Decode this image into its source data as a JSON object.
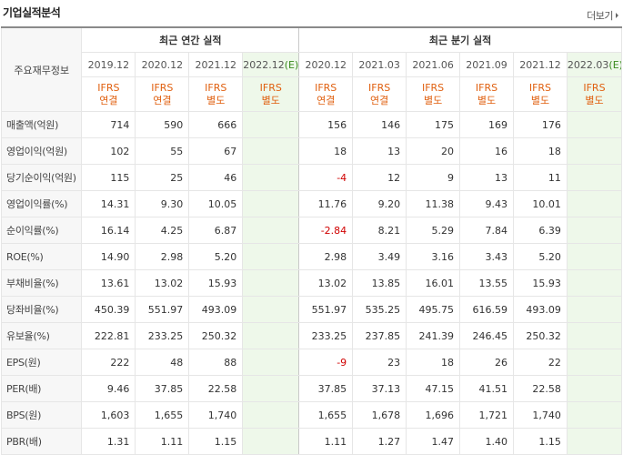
{
  "header": {
    "title": "기업실적분석",
    "more_label": "더보기"
  },
  "table": {
    "main_label": "주요재무정보",
    "annual_label": "최근 연간 실적",
    "quarter_label": "최근 분기 실적",
    "annual_periods": [
      "2019.12",
      "2020.12",
      "2021.12",
      "2022.12"
    ],
    "annual_est_mark": "(E)",
    "quarter_periods": [
      "2020.12",
      "2021.03",
      "2021.06",
      "2021.09",
      "2021.12",
      "2022.03"
    ],
    "quarter_est_mark": "(E)",
    "annual_std": [
      [
        "IFRS",
        "연결"
      ],
      [
        "IFRS",
        "연결"
      ],
      [
        "IFRS",
        "별도"
      ],
      [
        "IFRS",
        "별도"
      ]
    ],
    "quarter_std": [
      [
        "IFRS",
        "연결"
      ],
      [
        "IFRS",
        "연결"
      ],
      [
        "IFRS",
        "별도"
      ],
      [
        "IFRS",
        "별도"
      ],
      [
        "IFRS",
        "별도"
      ],
      [
        "IFRS",
        "별도"
      ]
    ],
    "rows": [
      {
        "label": "매출액(억원)",
        "annual": [
          "714",
          "590",
          "666",
          ""
        ],
        "quarter": [
          "156",
          "146",
          "175",
          "169",
          "176",
          ""
        ]
      },
      {
        "label": "영업이익(억원)",
        "annual": [
          "102",
          "55",
          "67",
          ""
        ],
        "quarter": [
          "18",
          "13",
          "20",
          "16",
          "18",
          ""
        ]
      },
      {
        "label": "당기순이익(억원)",
        "annual": [
          "115",
          "25",
          "46",
          ""
        ],
        "quarter": [
          "-4",
          "12",
          "9",
          "13",
          "11",
          ""
        ]
      },
      {
        "label": "영업이익률(%)",
        "annual": [
          "14.31",
          "9.30",
          "10.05",
          ""
        ],
        "quarter": [
          "11.76",
          "9.20",
          "11.38",
          "9.43",
          "10.01",
          ""
        ]
      },
      {
        "label": "순이익률(%)",
        "annual": [
          "16.14",
          "4.25",
          "6.87",
          ""
        ],
        "quarter": [
          "-2.84",
          "8.21",
          "5.29",
          "7.84",
          "6.39",
          ""
        ]
      },
      {
        "label": "ROE(%)",
        "annual": [
          "14.90",
          "2.98",
          "5.20",
          ""
        ],
        "quarter": [
          "2.98",
          "3.49",
          "3.16",
          "3.43",
          "5.20",
          ""
        ]
      },
      {
        "label": "부채비율(%)",
        "annual": [
          "13.61",
          "13.02",
          "15.93",
          ""
        ],
        "quarter": [
          "13.02",
          "13.85",
          "16.01",
          "13.55",
          "15.93",
          ""
        ]
      },
      {
        "label": "당좌비율(%)",
        "annual": [
          "450.39",
          "551.97",
          "493.09",
          ""
        ],
        "quarter": [
          "551.97",
          "535.25",
          "495.75",
          "616.59",
          "493.09",
          ""
        ]
      },
      {
        "label": "유보율(%)",
        "annual": [
          "222.81",
          "233.25",
          "250.32",
          ""
        ],
        "quarter": [
          "233.25",
          "237.85",
          "241.39",
          "246.45",
          "250.32",
          ""
        ]
      },
      {
        "label": "EPS(원)",
        "annual": [
          "222",
          "48",
          "88",
          ""
        ],
        "quarter": [
          "-9",
          "23",
          "18",
          "26",
          "22",
          ""
        ]
      },
      {
        "label": "PER(배)",
        "annual": [
          "9.46",
          "37.85",
          "22.58",
          ""
        ],
        "quarter": [
          "37.85",
          "37.13",
          "47.15",
          "41.51",
          "22.58",
          ""
        ]
      },
      {
        "label": "BPS(원)",
        "annual": [
          "1,603",
          "1,655",
          "1,740",
          ""
        ],
        "quarter": [
          "1,655",
          "1,678",
          "1,696",
          "1,721",
          "1,740",
          ""
        ]
      },
      {
        "label": "PBR(배)",
        "annual": [
          "1.31",
          "1.11",
          "1.15",
          ""
        ],
        "quarter": [
          "1.11",
          "1.27",
          "1.47",
          "1.40",
          "1.15",
          ""
        ]
      }
    ]
  },
  "colors": {
    "estimate_bg": "#eef8ea",
    "std_text": "#e06010",
    "negative": "#d00000"
  }
}
